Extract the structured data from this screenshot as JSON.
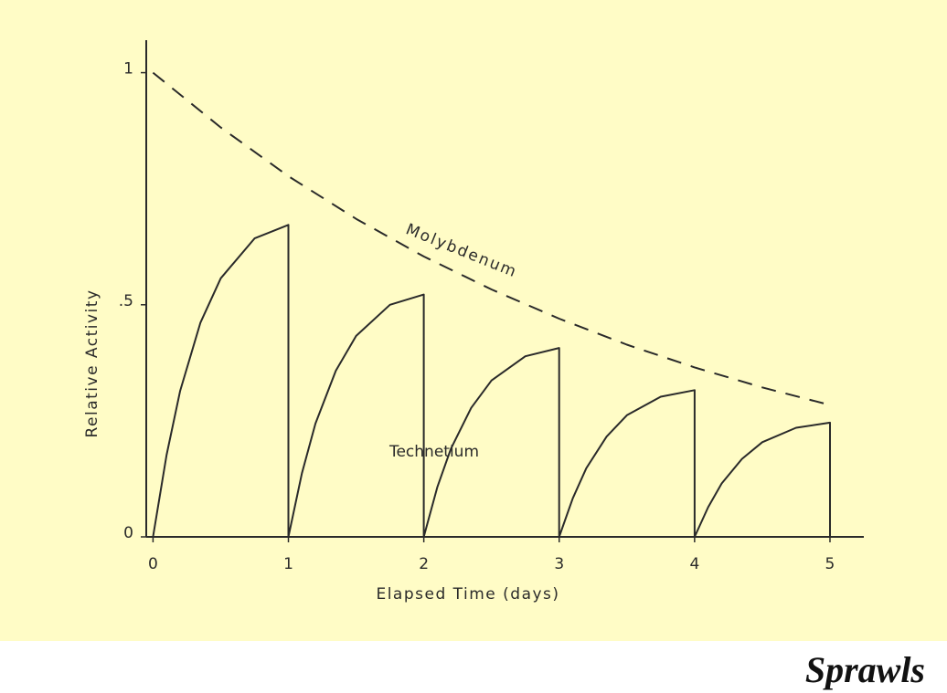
{
  "chart_data": {
    "type": "line",
    "xlabel": "Elapsed Time (days)",
    "ylabel": "Relative Activity",
    "xlim": [
      -0.05,
      5.25
    ],
    "ylim": [
      0,
      1.07
    ],
    "xticks": [
      0,
      1,
      2,
      3,
      4,
      5
    ],
    "yticks": [
      0,
      {
        "value": 0.5,
        "label": ".5"
      },
      1
    ],
    "grid": false,
    "series": [
      {
        "name": "Molybdenum",
        "color": "#2a2a2a",
        "dashed": true,
        "x": [
          0,
          0.5,
          1,
          1.5,
          2,
          2.5,
          3,
          3.5,
          4,
          4.5,
          5
        ],
        "values": [
          1,
          0.882,
          0.777,
          0.685,
          0.604,
          0.533,
          0.47,
          0.414,
          0.365,
          0.322,
          0.284
        ]
      },
      {
        "name": "Technetium",
        "color": "#2a2a2a",
        "dashed": false,
        "x": [
          0,
          0.1,
          0.2,
          0.35,
          0.5,
          0.75,
          1,
          1,
          1.1,
          1.2,
          1.35,
          1.5,
          1.75,
          2,
          2,
          2.1,
          2.2,
          2.35,
          2.5,
          2.75,
          3,
          3,
          3.1,
          3.2,
          3.35,
          3.5,
          3.75,
          4,
          4,
          4.1,
          4.2,
          4.35,
          4.5,
          4.75,
          5,
          5
        ],
        "values": [
          0,
          0.176,
          0.314,
          0.461,
          0.557,
          0.643,
          0.672,
          0,
          0.137,
          0.244,
          0.358,
          0.433,
          0.5,
          0.522,
          0,
          0.107,
          0.19,
          0.278,
          0.337,
          0.389,
          0.407,
          0,
          0.083,
          0.148,
          0.216,
          0.262,
          0.302,
          0.316,
          0,
          0.064,
          0.115,
          0.168,
          0.204,
          0.235,
          0.246,
          0
        ]
      }
    ],
    "credit": "Sprawls"
  }
}
